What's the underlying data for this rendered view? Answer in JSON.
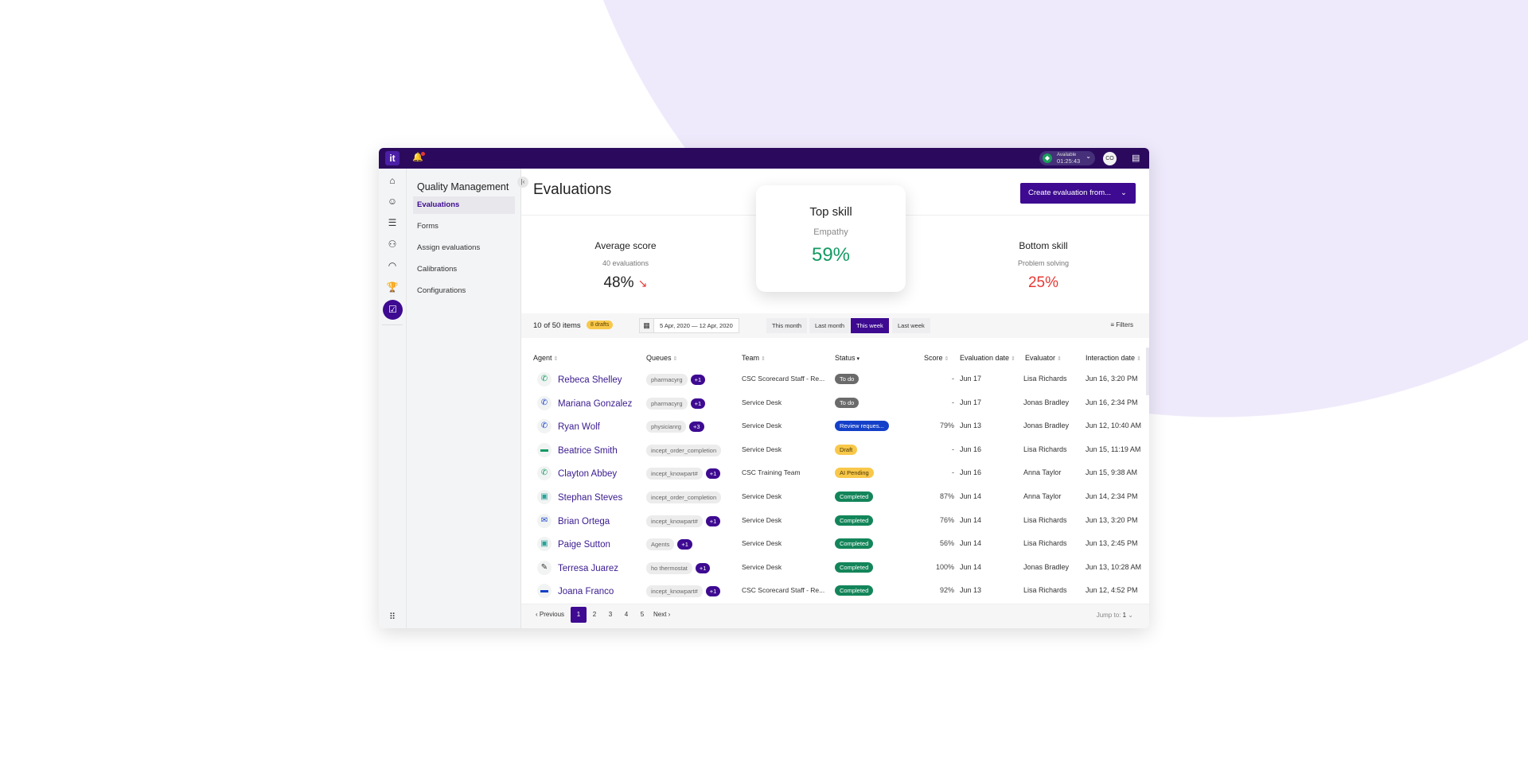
{
  "colors": {
    "brand": "#3d0a91",
    "topbar": "#2b0a5e",
    "background_shape": "#efe9fc",
    "positive": "#139a63",
    "negative": "#e53935",
    "draft": "#f8c84a",
    "todo": "#6b6b6b",
    "review": "#1440c9",
    "completed": "#13855a"
  },
  "topbar": {
    "logo": "it",
    "status": "Available",
    "timer": "01:25:43",
    "avatar": "CO"
  },
  "rail": [
    "home-icon",
    "skills-icon",
    "list-icon",
    "people-icon",
    "gauge-icon",
    "trophy-icon",
    "clipboard-check-icon",
    "apps-grid-icon"
  ],
  "nav": {
    "title": "Quality Management",
    "items": [
      "Evaluations",
      "Forms",
      "Assign evaluations",
      "Calibrations",
      "Configurations"
    ],
    "active": 0
  },
  "header": {
    "title": "Evaluations",
    "create_label": "Create evaluation from..."
  },
  "stats": {
    "average": {
      "title": "Average score",
      "sub": "40 evaluations",
      "value": "48%",
      "trend": "down"
    },
    "top": {
      "title": "Top skill",
      "sub": "Empathy",
      "value": "59%"
    },
    "bottom": {
      "title": "Bottom skill",
      "sub": "Problem solving",
      "value": "25%"
    }
  },
  "toolbar": {
    "count": "10 of 50 items",
    "drafts": "8 drafts",
    "date_range": "5 Apr, 2020 — 12 Apr, 2020",
    "ranges": [
      "This month",
      "Last month",
      "This week",
      "Last week"
    ],
    "active_range": 2,
    "filters": "Filters"
  },
  "columns": [
    "Agent",
    "Queues",
    "Team",
    "Status",
    "Score",
    "Evaluation date",
    "Evaluator",
    "Interaction date"
  ],
  "rows": [
    {
      "icon": "phone-incoming-icon",
      "agent": "Rebeca Shelley",
      "queue": "pharmacyrg",
      "more": "+1",
      "team": "CSC Scorecard Staff - Re...",
      "status": "To do",
      "score": "-",
      "eval_date": "Jun 17",
      "evaluator": "Lisa Richards",
      "interaction": "Jun 16, 3:20 PM"
    },
    {
      "icon": "phone-outgoing-icon",
      "agent": "Mariana Gonzalez",
      "queue": "pharmacyrg",
      "more": "+1",
      "team": "Service Desk",
      "status": "To do",
      "score": "-",
      "eval_date": "Jun 17",
      "evaluator": "Jonas Bradley",
      "interaction": "Jun 16, 2:34 PM"
    },
    {
      "icon": "phone-outgoing-icon",
      "agent": "Ryan Wolf",
      "queue": "physicianrg",
      "more": "+3",
      "team": "Service Desk",
      "status": "Review reques...",
      "score": "79%",
      "eval_date": "Jun 13",
      "evaluator": "Jonas Bradley",
      "interaction": "Jun 12, 10:40 AM"
    },
    {
      "icon": "chat-icon",
      "agent": "Beatrice Smith",
      "queue": "incept_order_completion",
      "more": "",
      "team": "Service Desk",
      "status": "Draft",
      "score": "-",
      "eval_date": "Jun 16",
      "evaluator": "Lisa Richards",
      "interaction": "Jun 15, 11:19 AM"
    },
    {
      "icon": "phone-incoming-icon",
      "agent": "Clayton Abbey",
      "queue": "incept_knowpart#",
      "more": "+1",
      "team": "CSC Training Team",
      "status": "AI Pending",
      "score": "-",
      "eval_date": "Jun 16",
      "evaluator": "Anna Taylor",
      "interaction": "Jun 15, 9:38 AM"
    },
    {
      "icon": "forum-icon",
      "agent": "Stephan Steves",
      "queue": "incept_order_completion",
      "more": "",
      "team": "Service Desk",
      "status": "Completed",
      "score": "87%",
      "eval_date": "Jun 14",
      "evaluator": "Anna Taylor",
      "interaction": "Jun 14, 2:34 PM"
    },
    {
      "icon": "email-outgoing-icon",
      "agent": "Brian Ortega",
      "queue": "incept_knowpart#",
      "more": "+1",
      "team": "Service Desk",
      "status": "Completed",
      "score": "76%",
      "eval_date": "Jun 14",
      "evaluator": "Lisa Richards",
      "interaction": "Jun 13, 3:20 PM"
    },
    {
      "icon": "forum-icon",
      "agent": "Paige Sutton",
      "queue": "Agents",
      "more": "+1",
      "team": "Service Desk",
      "status": "Completed",
      "score": "56%",
      "eval_date": "Jun 14",
      "evaluator": "Lisa Richards",
      "interaction": "Jun 13, 2:45 PM"
    },
    {
      "icon": "edit-form-icon",
      "agent": "Terresa Juarez",
      "queue": "ho thermostat",
      "more": "+1",
      "team": "Service Desk",
      "status": "Completed",
      "score": "100%",
      "eval_date": "Jun 14",
      "evaluator": "Jonas Bradley",
      "interaction": "Jun 13, 10:28 AM"
    },
    {
      "icon": "sms-icon",
      "agent": "Joana Franco",
      "queue": "incept_knowpart#",
      "more": "+1",
      "team": "CSC Scorecard Staff - Re...",
      "status": "Completed",
      "score": "92%",
      "eval_date": "Jun 13",
      "evaluator": "Lisa Richards",
      "interaction": "Jun 12, 4:52 PM"
    }
  ],
  "pagination": {
    "previous": "Previous",
    "pages": [
      "1",
      "2",
      "3",
      "4",
      "5"
    ],
    "current": 0,
    "next": "Next",
    "jump_label": "Jump to:",
    "jump_value": "1"
  }
}
